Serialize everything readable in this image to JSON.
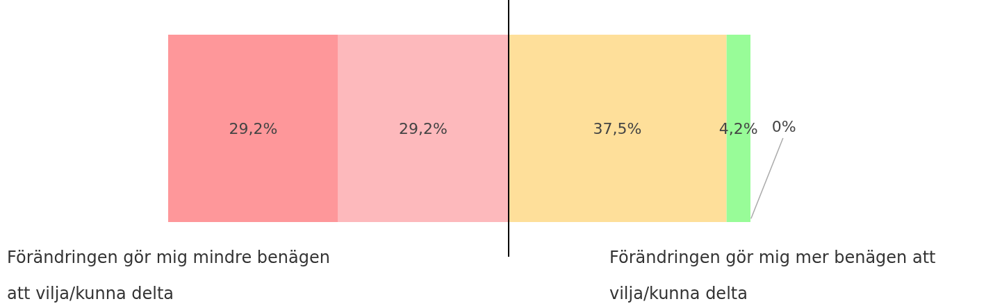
{
  "chart_data": {
    "type": "bar",
    "orientation": "horizontal",
    "stacked": true,
    "categories": [
      null
    ],
    "series": [
      {
        "color": "#fe979a",
        "values": [
          29.2
        ],
        "value_labels": [
          "29,2%"
        ]
      },
      {
        "color": "#fdb9bc",
        "values": [
          29.2
        ],
        "value_labels": [
          "29,2%"
        ]
      },
      {
        "color": "#fedf9a",
        "values": [
          37.5
        ],
        "value_labels": [
          "37,5%"
        ]
      },
      {
        "color": "#98fc98",
        "values": [
          4.2
        ],
        "value_labels": [
          "4,2%"
        ]
      },
      {
        "color": "#5cc85c",
        "values": [
          0
        ],
        "value_labels": [
          "0%"
        ]
      }
    ],
    "xlim": [
      0,
      100
    ],
    "tick_labels": false,
    "ref_lines": [
      {
        "axis": "x",
        "value": 58.4,
        "color": "#000000"
      }
    ],
    "annotations": [
      "Förändringen gör mig mindre benägen att vilja/kunna delta",
      "Förändringen gör mig mer benägen att vilja/kunna delta"
    ]
  }
}
